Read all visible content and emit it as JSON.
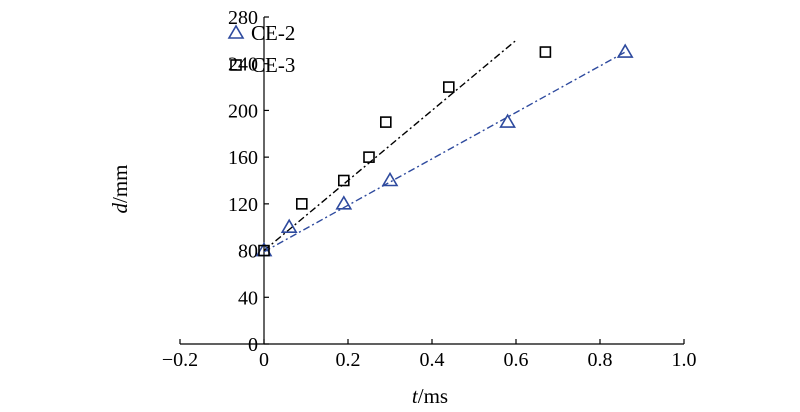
{
  "chart_data": {
    "type": "scatter",
    "xlabel_var": "t",
    "xlabel_unit": "/ms",
    "ylabel_var": "d",
    "ylabel_unit": "/mm",
    "xlim": [
      -0.2,
      1.0
    ],
    "ylim": [
      0,
      280
    ],
    "xticks": [
      -0.2,
      0,
      0.2,
      0.4,
      0.6,
      0.8,
      1.0
    ],
    "xtick_labels": [
      "−0.2",
      "0",
      "0.2",
      "0.4",
      "0.6",
      "0.8",
      "1.0"
    ],
    "yticks": [
      0,
      40,
      80,
      120,
      160,
      200,
      240,
      280
    ],
    "ytick_labels": [
      "0",
      "40",
      "80",
      "120",
      "160",
      "200",
      "240",
      "280"
    ],
    "grid": false,
    "legend_position": "top-left",
    "series": [
      {
        "name": "CE-2",
        "marker": "triangle",
        "color": "#2e4a9e",
        "x": [
          0,
          0.06,
          0.19,
          0.3,
          0.58,
          0.86
        ],
        "y": [
          80,
          100,
          120,
          140,
          190,
          250
        ],
        "fit_line": {
          "style": "dash-dot",
          "x": [
            0,
            0.86
          ],
          "y": [
            79,
            250
          ]
        }
      },
      {
        "name": "CE-3",
        "marker": "square",
        "color": "#000000",
        "x": [
          0,
          0.09,
          0.19,
          0.25,
          0.29,
          0.44,
          0.67
        ],
        "y": [
          80,
          120,
          140,
          160,
          190,
          220,
          250
        ],
        "fit_line": {
          "style": "dash-dot",
          "x": [
            0,
            0.6
          ],
          "y": [
            80,
            260
          ]
        }
      }
    ]
  }
}
